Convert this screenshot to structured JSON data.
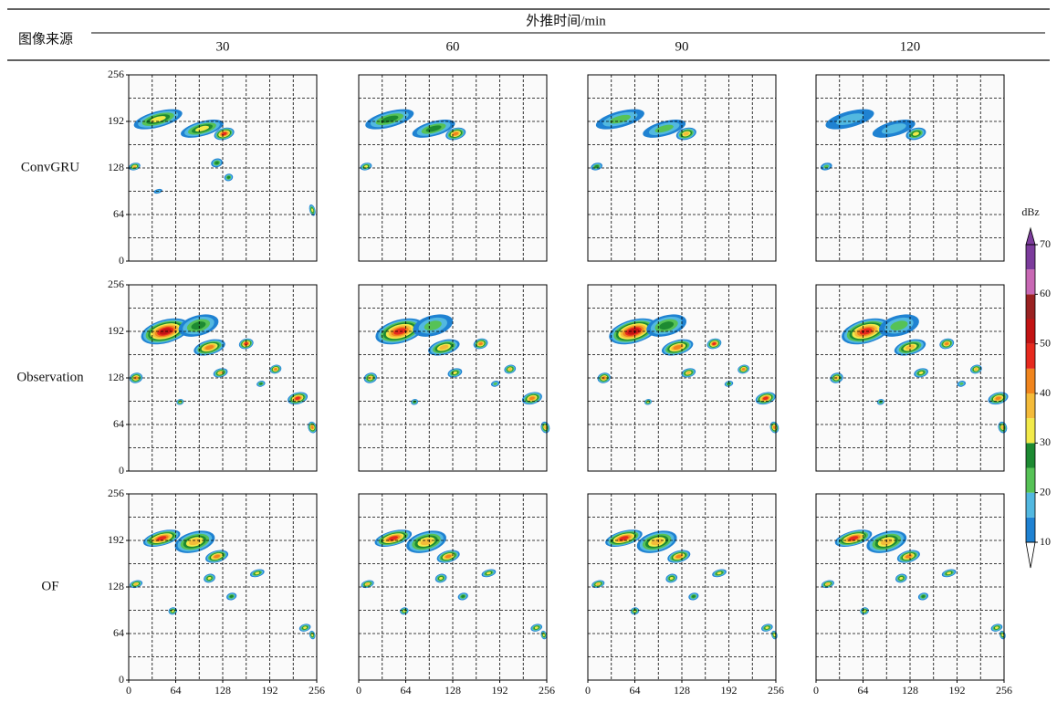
{
  "header": {
    "source_label": "图像来源",
    "time_label": "外推时间/min",
    "columns": [
      "30",
      "60",
      "90",
      "120"
    ]
  },
  "rows": [
    "ConvGRU",
    "Observation",
    "OF"
  ],
  "axis": {
    "lim": [
      0,
      256
    ],
    "ticks": [
      0,
      64,
      128,
      192,
      256
    ],
    "gridlines": [
      32,
      64,
      96,
      128,
      160,
      192,
      224
    ]
  },
  "colorbar": {
    "label": "dBz",
    "ticks": [
      10,
      20,
      30,
      40,
      50,
      60,
      70
    ],
    "levels": [
      10,
      15,
      20,
      25,
      30,
      35,
      40,
      45,
      50,
      55,
      60,
      65,
      70
    ],
    "colors": [
      "#1f82d2",
      "#52b8e0",
      "#56c256",
      "#1d8a32",
      "#f2ea4a",
      "#f4bb3a",
      "#f0851e",
      "#e62a1e",
      "#c21414",
      "#9a2222",
      "#c868b4",
      "#7c3c9c"
    ]
  }
}
